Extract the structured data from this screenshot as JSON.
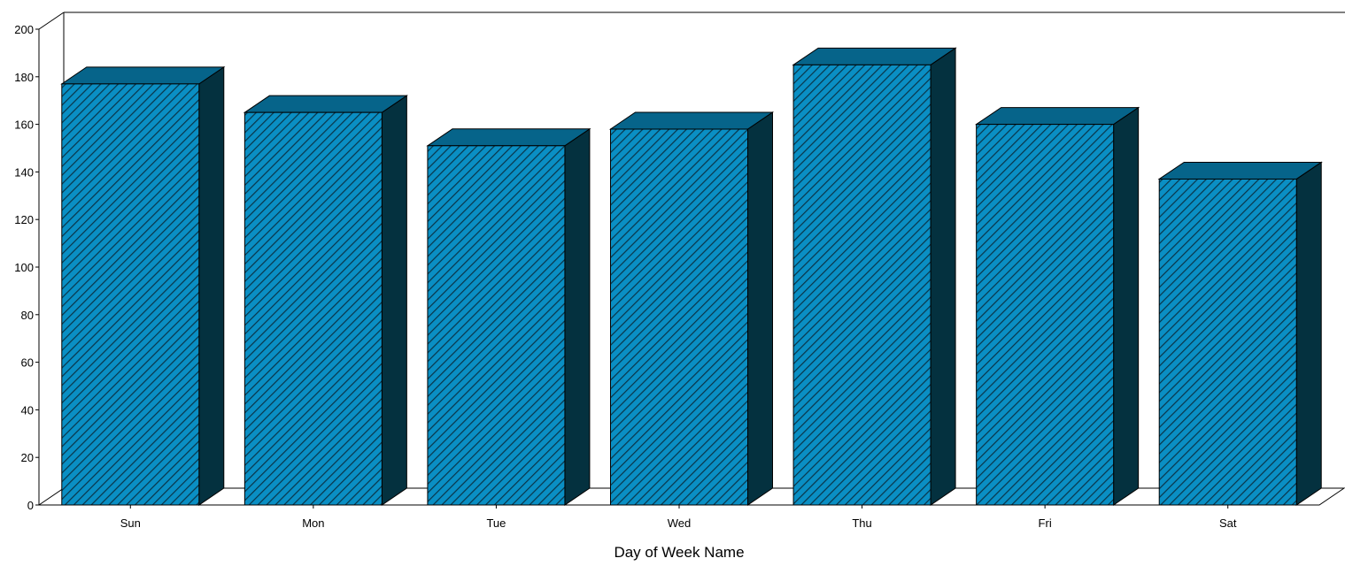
{
  "chart_data": {
    "type": "bar",
    "title": "",
    "xlabel": "Day of Week Name",
    "ylabel": "",
    "categories": [
      "Sun",
      "Mon",
      "Tue",
      "Wed",
      "Thu",
      "Fri",
      "Sat"
    ],
    "values": [
      177,
      165,
      151,
      158,
      185,
      160,
      137
    ],
    "ylim": [
      0,
      200
    ],
    "yticks": [
      "0",
      "20",
      "40",
      "60",
      "80",
      "100",
      "120",
      "140",
      "160",
      "180",
      "200"
    ],
    "grid": false,
    "legend": "none",
    "style": "3d",
    "colors": {
      "bar_front": "#0a8fc4",
      "bar_hatch": "#0a3448",
      "bar_top": "#06648a",
      "bar_side": "#04313f",
      "outline": "#000000"
    }
  }
}
